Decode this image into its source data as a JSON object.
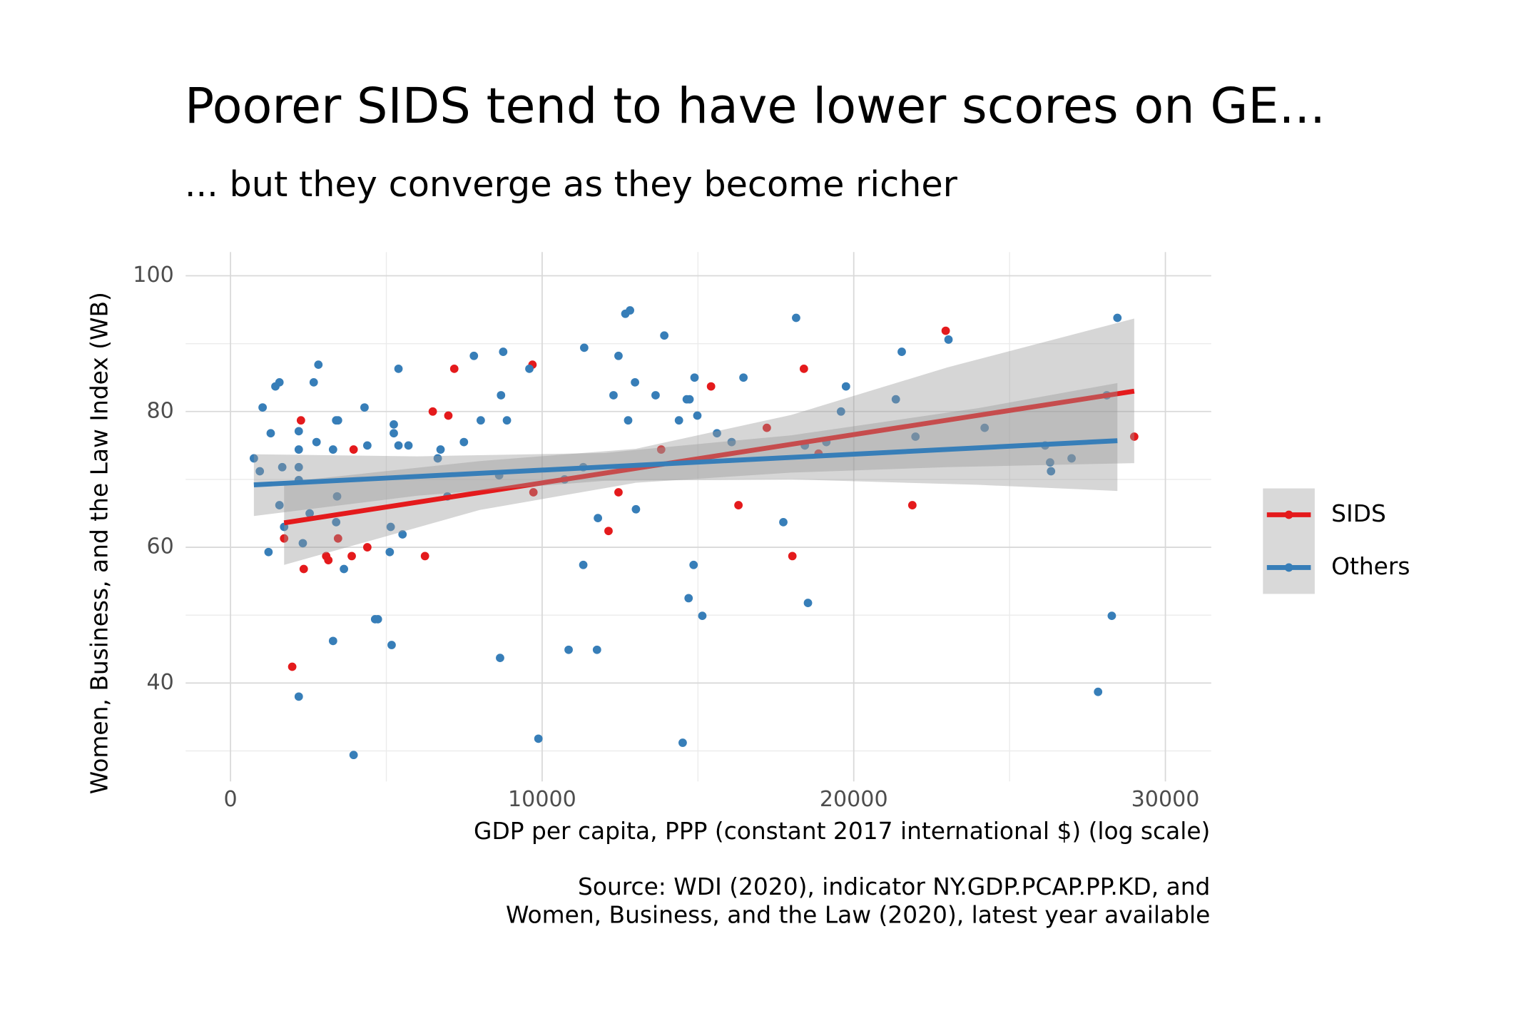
{
  "chart_data": {
    "type": "scatter",
    "title": "Poorer SIDS tend to have lower scores on GE...",
    "subtitle": "... but they converge as they become richer",
    "x_label": "GDP per capita, PPP (constant 2017 international $) (log scale)",
    "y_label": "Women, Business, and the Law Index (WB)",
    "source": [
      "Source: WDI (2020), indicator NY.GDP.PCAP.PP.KD, and",
      "Women, Business, and the Law (2020), latest year available"
    ],
    "xlim": [
      -1440,
      31470
    ],
    "ylim": [
      25.5,
      103.5
    ],
    "xticks": [
      0,
      10000,
      20000,
      30000
    ],
    "yticks": [
      40,
      60,
      80,
      100
    ],
    "xminorticks": [
      5000,
      15000,
      25000
    ],
    "yminorticks": [
      30,
      50,
      70,
      90
    ],
    "grid": true,
    "legend": "right",
    "series": [
      {
        "name": "SIDS",
        "color": "#e41a1c",
        "x": [
          2260,
          1720,
          1980,
          2350,
          3070,
          3140,
          3450,
          3890,
          3950,
          4390,
          6240,
          6490,
          6990,
          7180,
          9690,
          9720,
          12130,
          12450,
          13820,
          15420,
          16300,
          17210,
          18030,
          18400,
          18870,
          21880,
          22950,
          29000
        ],
        "values": [
          78.7,
          61.3,
          42.4,
          56.8,
          58.7,
          58.1,
          61.3,
          58.7,
          74.4,
          60.0,
          58.7,
          80.0,
          79.4,
          86.3,
          86.9,
          68.1,
          62.4,
          68.1,
          74.4,
          83.7,
          66.2,
          77.6,
          58.7,
          86.3,
          73.8,
          66.2,
          91.9,
          76.3
        ],
        "fit": {
          "x": [
            1720,
            29000
          ],
          "values": [
            63.6,
            83.0
          ]
        },
        "band": {
          "x": [
            1720,
            8000,
            13000,
            18000,
            23000,
            29000
          ],
          "lower": [
            57.4,
            65.5,
            69.5,
            71.0,
            71.8,
            72.4
          ],
          "upper": [
            69.6,
            72.7,
            74.5,
            79.5,
            86.5,
            93.7
          ]
        }
      },
      {
        "name": "Others",
        "color": "#377eb8",
        "x": [
          750,
          940,
          1030,
          1220,
          1290,
          1440,
          1570,
          1570,
          1660,
          1720,
          2190,
          2190,
          2190,
          2190,
          2190,
          2320,
          2540,
          2670,
          2760,
          2820,
          3290,
          3290,
          3390,
          3450,
          3420,
          3390,
          3640,
          3950,
          4300,
          4390,
          4640,
          4730,
          5110,
          5140,
          5170,
          5240,
          5240,
          5390,
          5390,
          5520,
          5710,
          6650,
          6740,
          6960,
          7490,
          7810,
          8030,
          8620,
          8650,
          8680,
          8750,
          8870,
          9590,
          9880,
          10720,
          10850,
          11320,
          11320,
          11350,
          11790,
          11760,
          12290,
          12450,
          12670,
          12820,
          12760,
          13010,
          12980,
          13640,
          13920,
          14390,
          14510,
          14640,
          14700,
          14730,
          14860,
          14890,
          14980,
          15140,
          15610,
          16080,
          16460,
          17740,
          18150,
          18430,
          18530,
          19120,
          19590,
          19750,
          21350,
          21540,
          21980,
          23040,
          24200,
          26140,
          26300,
          26330,
          26990,
          27840,
          28120,
          28280,
          28460
        ],
        "values": [
          73.1,
          71.2,
          80.6,
          59.3,
          76.8,
          83.7,
          84.3,
          66.2,
          71.8,
          63.0,
          77.1,
          74.4,
          69.9,
          71.8,
          38.0,
          60.6,
          65.0,
          84.3,
          75.5,
          86.9,
          74.4,
          46.2,
          78.7,
          78.7,
          67.5,
          63.7,
          56.8,
          29.4,
          80.6,
          75.0,
          49.4,
          49.4,
          59.3,
          63.0,
          45.6,
          78.1,
          76.8,
          86.3,
          75.0,
          61.9,
          75.0,
          73.1,
          74.4,
          67.5,
          75.5,
          88.2,
          78.7,
          70.6,
          43.7,
          82.4,
          88.8,
          78.7,
          86.3,
          31.8,
          70.0,
          44.9,
          71.8,
          57.4,
          89.4,
          64.3,
          44.9,
          82.4,
          88.2,
          94.4,
          94.9,
          78.7,
          65.6,
          84.3,
          82.4,
          91.2,
          78.7,
          31.2,
          81.8,
          52.5,
          81.8,
          57.4,
          85.0,
          79.4,
          49.9,
          76.8,
          75.5,
          85.0,
          63.7,
          93.8,
          75.0,
          51.8,
          75.5,
          80.0,
          83.7,
          81.8,
          88.8,
          76.3,
          90.6,
          77.6,
          75.0,
          72.5,
          71.2,
          73.1,
          38.7,
          82.4,
          49.9,
          93.8
        ],
        "fit": {
          "x": [
            750,
            28460
          ],
          "values": [
            69.2,
            75.7
          ]
        },
        "band": {
          "x": [
            750,
            6000,
            12000,
            18000,
            24000,
            28460
          ],
          "lower": [
            64.6,
            67.6,
            69.8,
            70.0,
            69.2,
            68.3
          ],
          "upper": [
            73.7,
            73.4,
            73.9,
            76.5,
            80.5,
            84.2
          ]
        }
      }
    ]
  }
}
